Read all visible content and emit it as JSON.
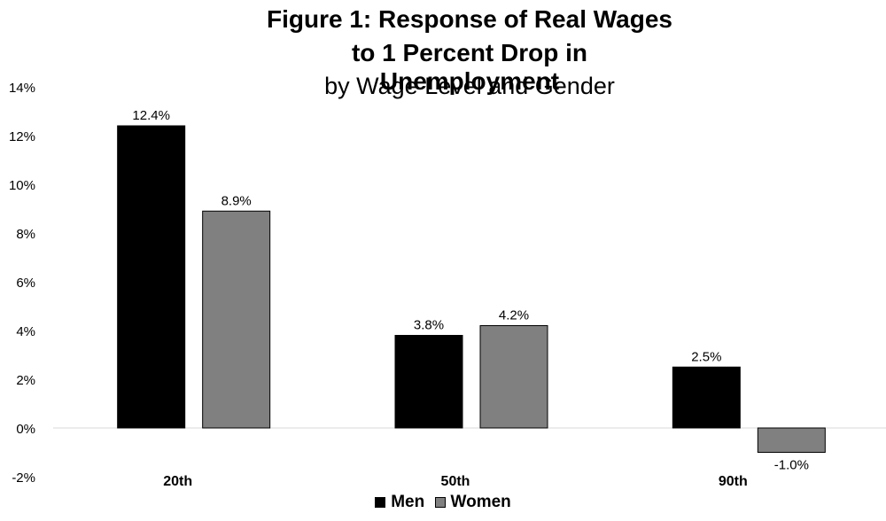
{
  "chart_data": {
    "type": "bar",
    "title": "Figure 1: Response of Real Wages",
    "title_line2": "to 1 Percent Drop in Unemployment",
    "subtitle": "by Wage Level and Gender",
    "categories": [
      "20th",
      "50th",
      "90th"
    ],
    "series": [
      {
        "name": "Men",
        "color": "#000000",
        "values": [
          12.4,
          3.8,
          2.5
        ],
        "labels": [
          "12.4%",
          "3.8%",
          "2.5%"
        ]
      },
      {
        "name": "Women",
        "color": "#808080",
        "values": [
          8.9,
          4.2,
          -1.0
        ],
        "labels": [
          "8.9%",
          "4.2%",
          "-1.0%"
        ]
      }
    ],
    "ylim": [
      -2,
      14
    ],
    "yticks": [
      -2,
      0,
      2,
      4,
      6,
      8,
      10,
      12,
      14
    ],
    "ytick_labels": [
      "-2%",
      "0%",
      "2%",
      "4%",
      "6%",
      "8%",
      "10%",
      "12%",
      "14%"
    ],
    "legend_position": "bottom",
    "grid": false
  }
}
